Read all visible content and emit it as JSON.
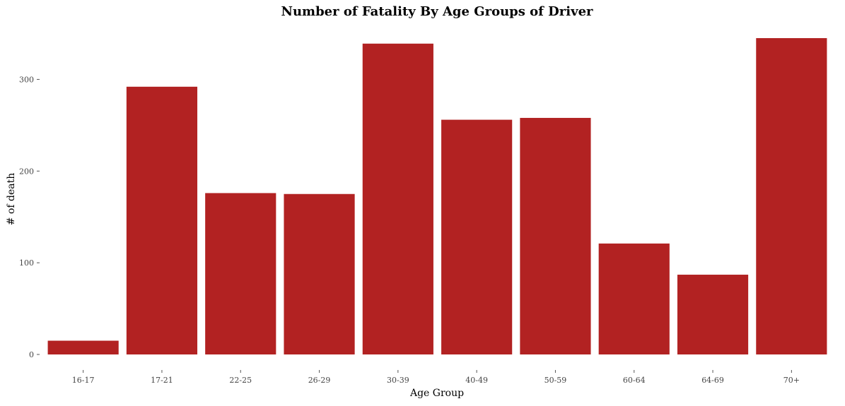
{
  "chart_data": {
    "type": "bar",
    "title": "Number of Fatality By Age Groups of Driver",
    "xlabel": "Age Group",
    "ylabel": "# of death",
    "categories": [
      "16-17",
      "17-21",
      "22-25",
      "26-29",
      "30-39",
      "40-49",
      "50-59",
      "60-64",
      "64-69",
      "70+"
    ],
    "values": [
      15,
      292,
      176,
      175,
      339,
      256,
      258,
      121,
      87,
      345
    ],
    "ylim": [
      0,
      345
    ],
    "yticks": [
      0,
      100,
      200,
      300
    ],
    "grid": false,
    "bar_color": "#b22222"
  }
}
